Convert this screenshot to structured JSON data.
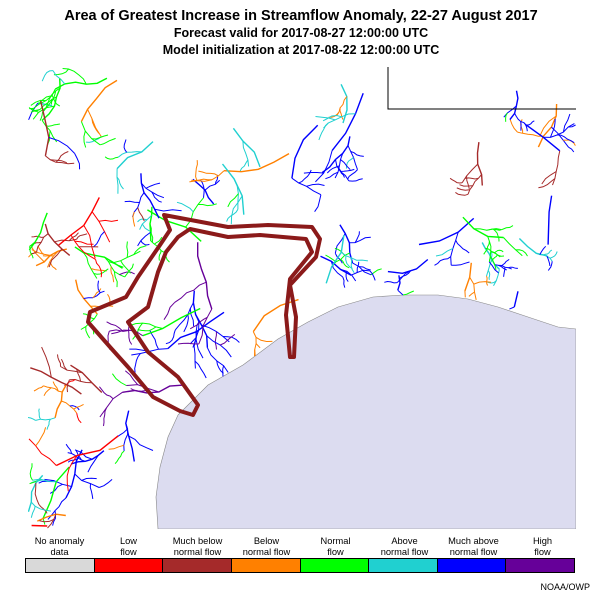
{
  "header": {
    "title": "Area of Greatest Increase in Streamflow Anomaly, 22-27 August 2017",
    "forecast": "Forecast valid for 2017-08-27 12:00:00 UTC",
    "init": "Model initialization at 2017-08-22 12:00:00 UTC"
  },
  "legend": [
    {
      "line1": "No anomaly",
      "line2": "data",
      "color": "#d9d9d9"
    },
    {
      "line1": "Low",
      "line2": "flow",
      "color": "#ff0000"
    },
    {
      "line1": "Much below",
      "line2": "normal flow",
      "color": "#a52a2a"
    },
    {
      "line1": "Below",
      "line2": "normal flow",
      "color": "#ff8000"
    },
    {
      "line1": "Normal",
      "line2": "flow",
      "color": "#00ff00"
    },
    {
      "line1": "Above",
      "line2": "normal flow",
      "color": "#20d0d0"
    },
    {
      "line1": "Much above",
      "line2": "normal flow",
      "color": "#0000ff"
    },
    {
      "line1": "High",
      "line2": "flow",
      "color": "#660099"
    }
  ],
  "map": {
    "ocean_color": "#dcdcf0",
    "highlight_color": "#8b1a1a",
    "state_border_color": "#000000"
  },
  "credit": "NOAA/OWP"
}
